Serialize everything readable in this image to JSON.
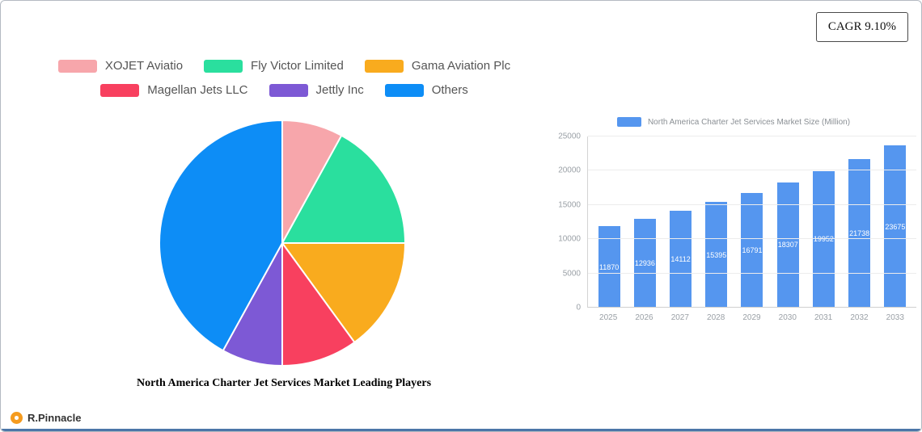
{
  "header": {
    "cagr_label": "CAGR 9.10%"
  },
  "brand": {
    "name": "R.Pinnacle"
  },
  "chart_data": [
    {
      "type": "pie",
      "title": "North America Charter Jet Services Market Leading Players",
      "labels": [
        "XOJET Aviatio",
        "Fly Victor Limited",
        "Gama Aviation Plc",
        "Magellan Jets LLC",
        "Jettly Inc",
        "Others"
      ],
      "values": [
        8,
        17,
        15,
        10,
        8,
        42
      ],
      "colors": [
        "#f7a6ab",
        "#2adf9e",
        "#f9ab1e",
        "#f8405f",
        "#7d59d5",
        "#0d8df6"
      ],
      "legend_position": "top",
      "start_angle_deg": 0,
      "direction": "clockwise"
    },
    {
      "type": "bar",
      "title": "",
      "legend_label": "North America Charter Jet Services Market Size (Million)",
      "categories": [
        "2025",
        "2026",
        "2027",
        "2028",
        "2029",
        "2030",
        "2031",
        "2032",
        "2033"
      ],
      "values": [
        11870,
        12936,
        14112,
        15395,
        16791,
        18307,
        19952,
        21738,
        23675
      ],
      "yticks": [
        0,
        5000,
        10000,
        15000,
        20000,
        25000
      ],
      "ylim": [
        0,
        25000
      ],
      "bar_color": "#5596ef",
      "grid": true,
      "legend_position": "top",
      "value_labels": "inside-white"
    }
  ]
}
